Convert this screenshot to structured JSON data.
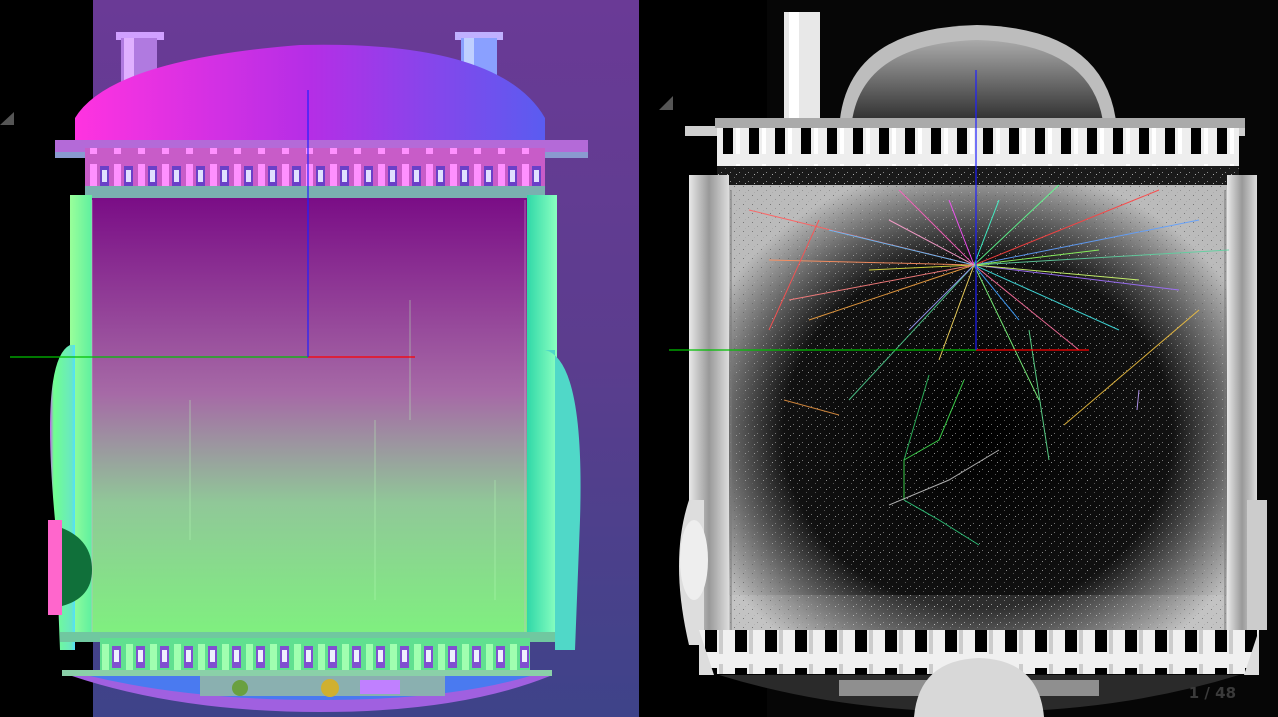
{
  "viewer": {
    "left_view": {
      "mode": "surface-normals"
    },
    "right_view": {
      "mode": "xray-with-tracks"
    },
    "page_indicator": "1 / 48",
    "colors": {
      "axis_x": "#ff0000",
      "axis_y": "#00c000",
      "axis_z": "#0000ff",
      "background": "#000000",
      "normals_bg_top": "#7a3a9a",
      "normals_bg_bottom": "#41418a"
    }
  }
}
